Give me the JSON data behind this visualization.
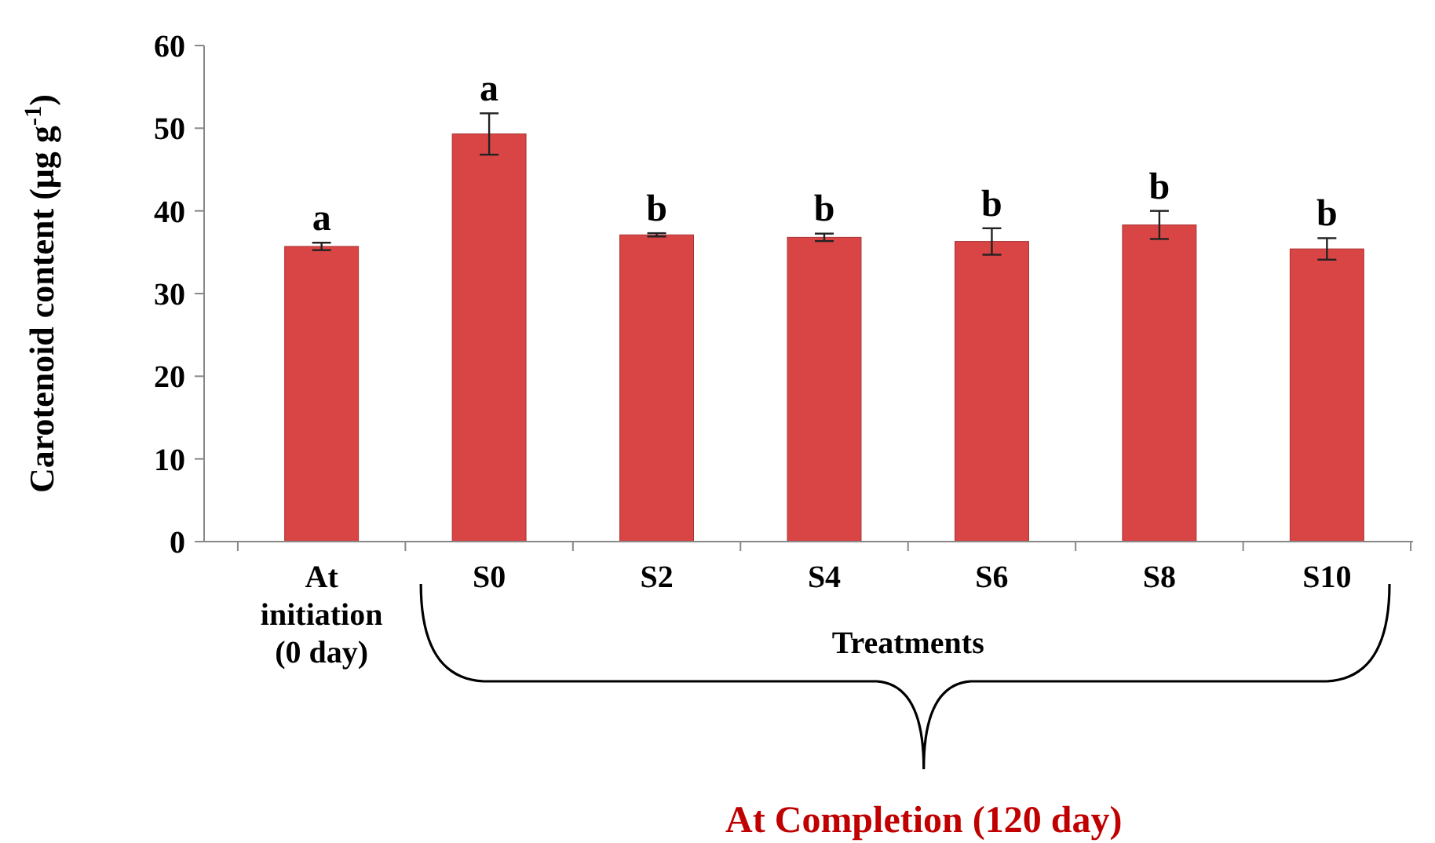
{
  "chart_data": {
    "type": "bar",
    "xlabel": "Treatments",
    "ylabel": "Carotenoid content (μg g$^{-1}$)",
    "categories": [
      "At initiation (0 day)",
      "S0",
      "S2",
      "S4",
      "S6",
      "S8",
      "S10"
    ],
    "values": [
      35.7,
      49.3,
      37.1,
      36.8,
      36.3,
      38.3,
      35.4
    ],
    "errors": [
      0.45,
      2.5,
      0.2,
      0.45,
      1.6,
      1.7,
      1.3
    ],
    "color": "#d94545",
    "ylim": [
      0,
      60
    ],
    "yticks": [
      0,
      10,
      20,
      30,
      40,
      50,
      60
    ],
    "annotations": [
      {
        "text": "a",
        "x": "At initiation (0 day)",
        "y": 36.2
      },
      {
        "text": "a",
        "x": "S0",
        "y": 51.8
      },
      {
        "text": "b",
        "x": "S2",
        "y": 37.3
      },
      {
        "text": "b",
        "x": "S4",
        "y": 37.3
      },
      {
        "text": "b",
        "x": "S6",
        "y": 37.9
      },
      {
        "text": "b",
        "x": "S8",
        "y": 40.0
      },
      {
        "text": "b",
        "x": "S10",
        "y": 36.7
      },
      "At Completion (120 day)"
    ]
  }
}
